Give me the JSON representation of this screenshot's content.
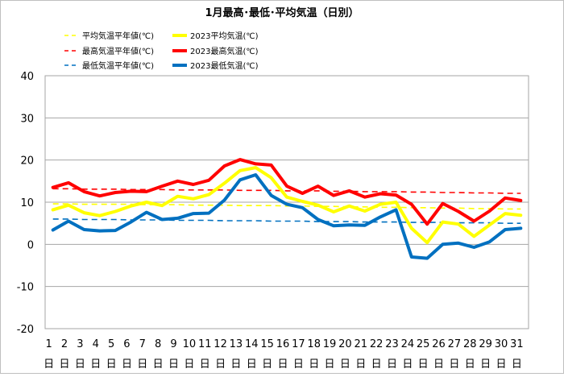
{
  "chart_data": {
    "type": "line",
    "title": "1月最高･最低･平均気温（日別）",
    "xlabel": "",
    "ylabel": "",
    "ylim": [
      -20,
      40
    ],
    "yticks": [
      -20,
      -10,
      0,
      10,
      20,
      30,
      40
    ],
    "grid": true,
    "legend_position": "top",
    "categories": [
      "1",
      "2",
      "3",
      "4",
      "5",
      "6",
      "7",
      "8",
      "9",
      "10",
      "11",
      "12",
      "13",
      "14",
      "15",
      "16",
      "17",
      "18",
      "19",
      "20",
      "21",
      "22",
      "23",
      "24",
      "25",
      "26",
      "27",
      "28",
      "29",
      "30",
      "31"
    ],
    "day_suffix": "日",
    "series": [
      {
        "name": "平均気温平年値(℃)",
        "color": "#ffff00",
        "style": "dashed",
        "values": [
          9.6,
          9.6,
          9.5,
          9.5,
          9.5,
          9.5,
          9.4,
          9.4,
          9.4,
          9.3,
          9.3,
          9.3,
          9.2,
          9.2,
          9.2,
          9.1,
          9.1,
          9.0,
          9.0,
          8.9,
          8.9,
          8.8,
          8.8,
          8.7,
          8.7,
          8.6,
          8.6,
          8.5,
          8.5,
          8.4,
          8.4
        ]
      },
      {
        "name": "2023平均気温(℃)",
        "color": "#ffff00",
        "style": "solid",
        "values": [
          8.2,
          9.3,
          7.5,
          6.8,
          7.8,
          9.1,
          10.0,
          9.2,
          11.4,
          10.8,
          11.8,
          14.5,
          17.5,
          18.2,
          15.8,
          11.2,
          10.2,
          9.3,
          7.7,
          9.1,
          7.9,
          9.5,
          10.0,
          3.8,
          0.4,
          5.3,
          4.8,
          1.9,
          4.6,
          7.3,
          6.9
        ]
      },
      {
        "name": "最高気温平年値(℃)",
        "color": "#ff0000",
        "style": "dashed",
        "values": [
          13.2,
          13.2,
          13.1,
          13.1,
          13.1,
          13.0,
          13.0,
          13.0,
          12.9,
          12.9,
          12.9,
          12.9,
          12.8,
          12.8,
          12.8,
          12.7,
          12.7,
          12.7,
          12.6,
          12.6,
          12.5,
          12.5,
          12.5,
          12.4,
          12.4,
          12.3,
          12.3,
          12.2,
          12.2,
          12.1,
          12.1
        ]
      },
      {
        "name": "2023最高気温(℃)",
        "color": "#ff0000",
        "style": "solid",
        "values": [
          13.5,
          14.6,
          12.5,
          11.5,
          12.3,
          12.6,
          12.5,
          13.8,
          15.0,
          14.2,
          15.2,
          18.6,
          20.1,
          19.1,
          18.8,
          13.8,
          12.1,
          13.8,
          11.6,
          12.7,
          11.2,
          12.0,
          11.7,
          9.5,
          4.8,
          9.7,
          7.8,
          5.5,
          7.9,
          11.0,
          10.4
        ]
      },
      {
        "name": "最低気温平年値(℃)",
        "color": "#0070c0",
        "style": "dashed",
        "values": [
          6.0,
          6.0,
          5.9,
          5.9,
          5.9,
          5.8,
          5.8,
          5.8,
          5.7,
          5.7,
          5.7,
          5.6,
          5.6,
          5.6,
          5.5,
          5.5,
          5.5,
          5.4,
          5.4,
          5.4,
          5.3,
          5.3,
          5.3,
          5.2,
          5.2,
          5.2,
          5.1,
          5.1,
          5.1,
          5.0,
          5.0
        ]
      },
      {
        "name": "2023最低気温(℃)",
        "color": "#0070c0",
        "style": "solid",
        "values": [
          3.4,
          5.5,
          3.5,
          3.2,
          3.3,
          5.3,
          7.6,
          5.9,
          6.2,
          7.3,
          7.4,
          10.5,
          15.3,
          16.5,
          11.6,
          9.5,
          8.7,
          5.9,
          4.4,
          4.6,
          4.5,
          6.5,
          8.2,
          -3.0,
          -3.3,
          0.0,
          0.3,
          -0.7,
          0.6,
          3.5,
          3.8
        ]
      }
    ]
  }
}
